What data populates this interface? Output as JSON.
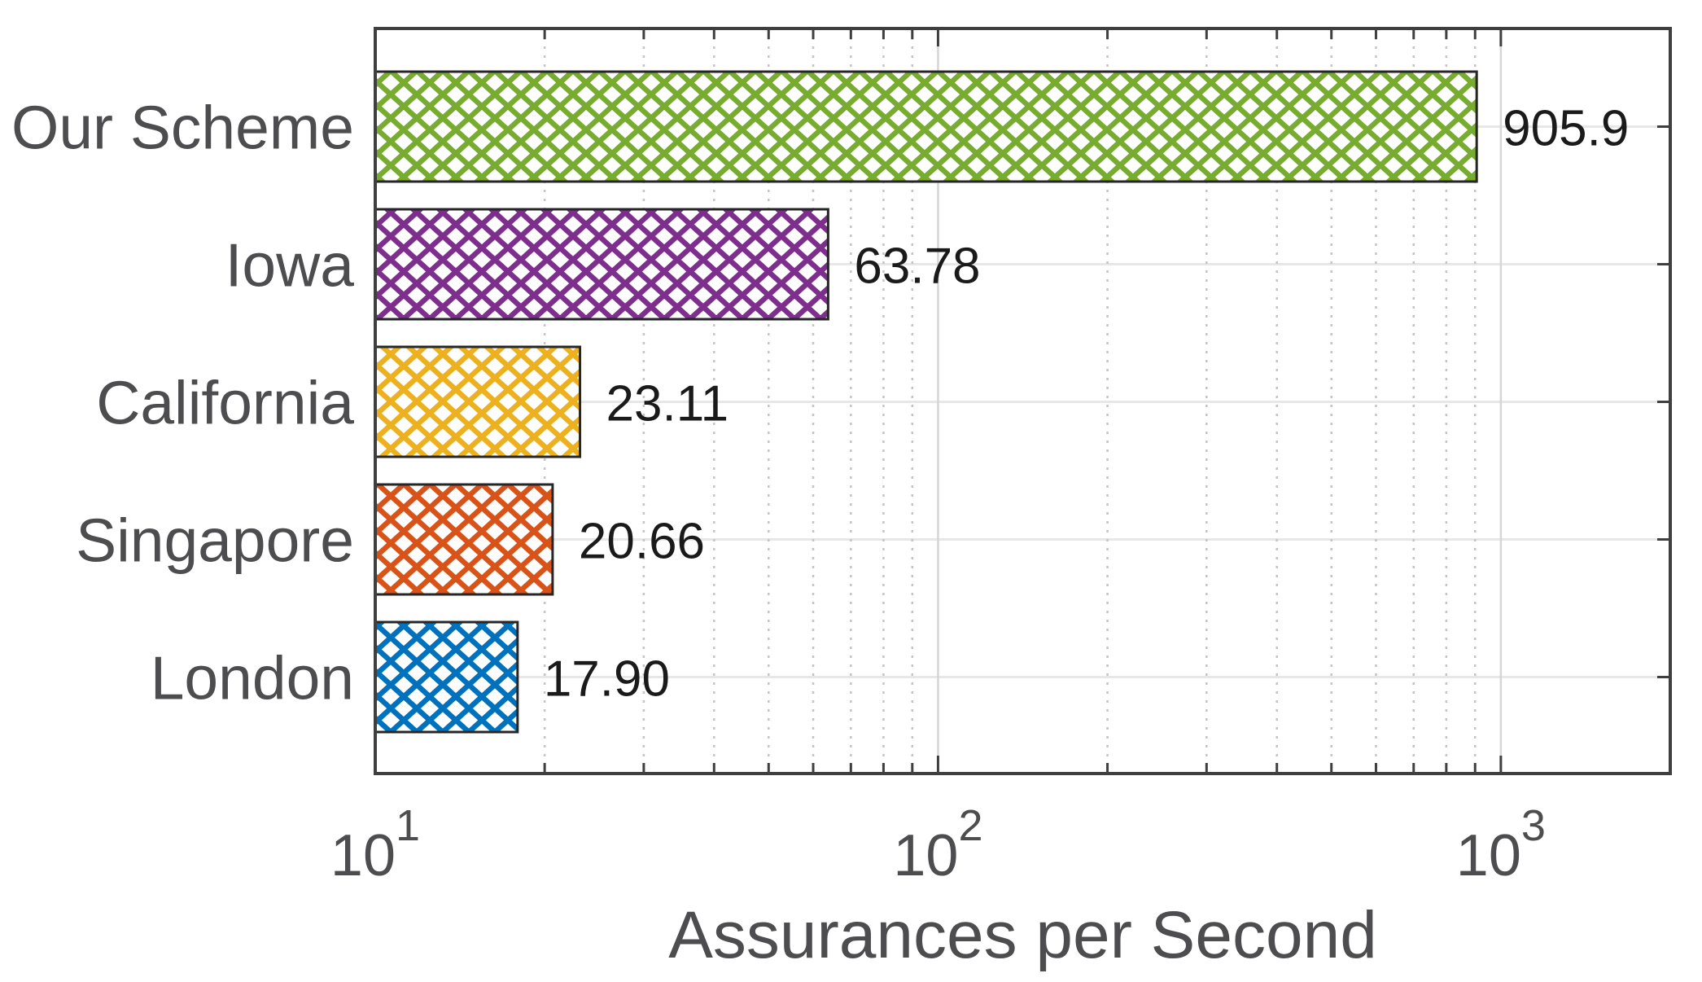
{
  "chart_data": {
    "type": "bar",
    "orientation": "horizontal",
    "title": "",
    "xlabel": "Assurances per Second",
    "x_scale": "log10",
    "xlim": [
      10,
      2000
    ],
    "x_major_ticks": [
      {
        "value": 10,
        "base": "10",
        "exponent": "1"
      },
      {
        "value": 100,
        "base": "10",
        "exponent": "2"
      },
      {
        "value": 1000,
        "base": "10",
        "exponent": "3"
      }
    ],
    "grid": {
      "x_major": "solid",
      "x_minor": "dotted",
      "y": "solid",
      "visible": true
    },
    "bar_style": "crosshatch",
    "categories": [
      "Our Scheme",
      "Iowa",
      "California",
      "Singapore",
      "London"
    ],
    "values": [
      905.9,
      63.78,
      23.11,
      20.66,
      17.9
    ],
    "value_labels": [
      "905.9",
      "63.78",
      "23.11",
      "20.66",
      "17.90"
    ],
    "bar_colors": [
      "#77AC30",
      "#7E2F8E",
      "#EDB120",
      "#D95319",
      "#0072BD"
    ],
    "colors": {
      "background": "#ffffff",
      "axis_box": "#3f3f3f",
      "bar_edge": "#262626",
      "category_label": "#4d4d4f",
      "tick_label": "#4d4d4f",
      "axis_title": "#4d4d4f",
      "value_label": "#1a1a1a",
      "grid_x_major": "#d6d6d6",
      "grid_x_minor": "#c4c4c4",
      "grid_y": "#e7e7e7"
    }
  }
}
